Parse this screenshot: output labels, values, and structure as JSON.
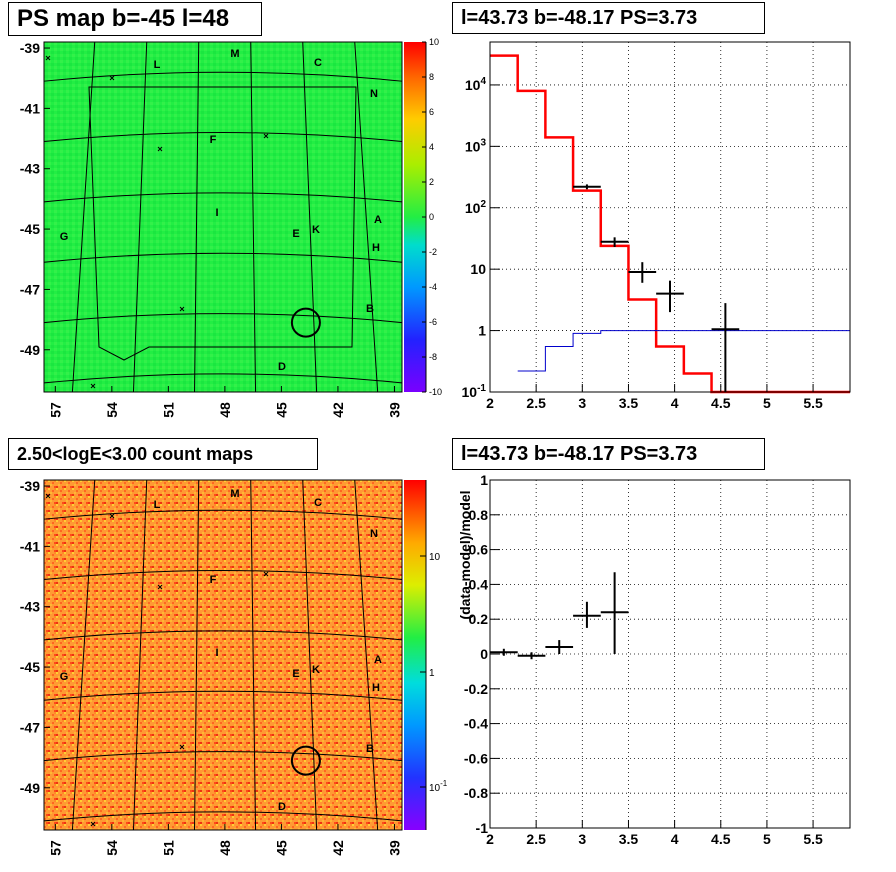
{
  "panels": {
    "ps_map": {
      "title": "PS map b=-45 l=48",
      "x_ticks": [
        "57",
        "54",
        "51",
        "48",
        "45",
        "42",
        "39"
      ],
      "y_ticks": [
        "-39",
        "-41",
        "-43",
        "-45",
        "-47",
        "-49"
      ],
      "colorbar_ticks": [
        "10",
        "8",
        "6",
        "4",
        "2",
        "0",
        "-2",
        "-4",
        "-6",
        "-8",
        "-10"
      ],
      "source_labels": [
        "M",
        "L",
        "C",
        "N",
        "F",
        "I",
        "A",
        "E",
        "K",
        "G",
        "H",
        "B",
        "D"
      ]
    },
    "spectrum": {
      "title": "l=43.73 b=-48.17 PS=3.73",
      "x_ticks": [
        "2",
        "2.5",
        "3",
        "3.5",
        "4",
        "4.5",
        "5",
        "5.5"
      ],
      "y_ticks": [
        "10^-1",
        "1",
        "10",
        "10^2",
        "10^3",
        "10^4"
      ]
    },
    "count_map": {
      "title": "2.50<logE<3.00 count maps",
      "x_ticks": [
        "57",
        "54",
        "51",
        "48",
        "45",
        "42",
        "39"
      ],
      "y_ticks": [
        "-39",
        "-41",
        "-43",
        "-45",
        "-47",
        "-49"
      ],
      "colorbar_ticks": [
        "10",
        "1",
        "10^-1"
      ],
      "source_labels": [
        "M",
        "L",
        "C",
        "N",
        "F",
        "I",
        "A",
        "E",
        "K",
        "G",
        "H",
        "B",
        "D"
      ]
    },
    "residual": {
      "title": "l=43.73 b=-48.17 PS=3.73",
      "ylabel": "(data-model)/model",
      "x_ticks": [
        "2",
        "2.5",
        "3",
        "3.5",
        "4",
        "4.5",
        "5",
        "5.5"
      ],
      "y_ticks": [
        "1",
        "0.8",
        "0.6",
        "0.4",
        "0.2",
        "0",
        "-0.2",
        "-0.4",
        "-0.6",
        "-0.8",
        "-1"
      ]
    }
  },
  "chart_data": [
    {
      "type": "heatmap",
      "title": "PS map b=-45 l=48",
      "xlim": [
        57.6,
        38.6
      ],
      "ylim": [
        -50.4,
        -38.8
      ],
      "zlim": [
        -10,
        10
      ],
      "colors": {
        "background": "#22ee44"
      },
      "circle_marker": {
        "x": 43.7,
        "y": -48.1
      }
    },
    {
      "type": "line",
      "title": "l=43.73 b=-48.17 PS=3.73",
      "xlim": [
        2,
        5.9
      ],
      "ylim": [
        0.1,
        50000
      ],
      "yscale": "log",
      "grid": true,
      "series": [
        {
          "color": "#ff0000",
          "x": [
            2.0,
            2.3,
            2.6,
            2.9,
            3.2,
            3.5,
            3.8,
            4.1,
            4.4,
            5.9
          ],
          "values": [
            30000,
            8000,
            1400,
            190,
            24,
            3.2,
            0.55,
            0.2,
            0.1,
            0.1
          ]
        },
        {
          "color": "#0000cc",
          "x": [
            2.3,
            2.6,
            2.9,
            3.2,
            3.5,
            5.9
          ],
          "values": [
            0.22,
            0.55,
            0.9,
            1.0,
            1.0,
            1.0
          ]
        },
        {
          "color": "#000000",
          "points": [
            {
              "x": 3.05,
              "y": 220,
              "ylo": 200,
              "yhi": 240
            },
            {
              "x": 3.35,
              "y": 28,
              "ylo": 23,
              "yhi": 33
            },
            {
              "x": 3.65,
              "y": 9,
              "ylo": 6,
              "yhi": 13
            },
            {
              "x": 3.95,
              "y": 4,
              "ylo": 2,
              "yhi": 6.5
            },
            {
              "x": 4.55,
              "y": 1.05,
              "ylo": 0.1,
              "yhi": 2.8
            }
          ]
        }
      ]
    },
    {
      "type": "heatmap",
      "title": "2.50<logE<3.00 count maps",
      "xlim": [
        57.6,
        38.6
      ],
      "ylim": [
        -50.4,
        -38.8
      ],
      "zscale": "log",
      "colors": {
        "background": "#ff9a33"
      },
      "circle_marker": {
        "x": 43.7,
        "y": -48.1
      }
    },
    {
      "type": "scatter",
      "title": "l=43.73 b=-48.17 PS=3.73",
      "ylabel": "(data-model)/model",
      "xlim": [
        2,
        5.9
      ],
      "ylim": [
        -1,
        1
      ],
      "grid": true,
      "points": [
        {
          "x": 2.15,
          "y": 0.01,
          "ylo": -0.01,
          "yhi": 0.03,
          "xerr": 0.15
        },
        {
          "x": 2.45,
          "y": -0.01,
          "ylo": -0.03,
          "yhi": 0.01,
          "xerr": 0.15
        },
        {
          "x": 2.75,
          "y": 0.04,
          "ylo": 0.0,
          "yhi": 0.08,
          "xerr": 0.15
        },
        {
          "x": 3.05,
          "y": 0.22,
          "ylo": 0.15,
          "yhi": 0.3,
          "xerr": 0.15
        },
        {
          "x": 3.35,
          "y": 0.24,
          "ylo": 0.0,
          "yhi": 0.47,
          "xerr": 0.15
        }
      ]
    }
  ]
}
